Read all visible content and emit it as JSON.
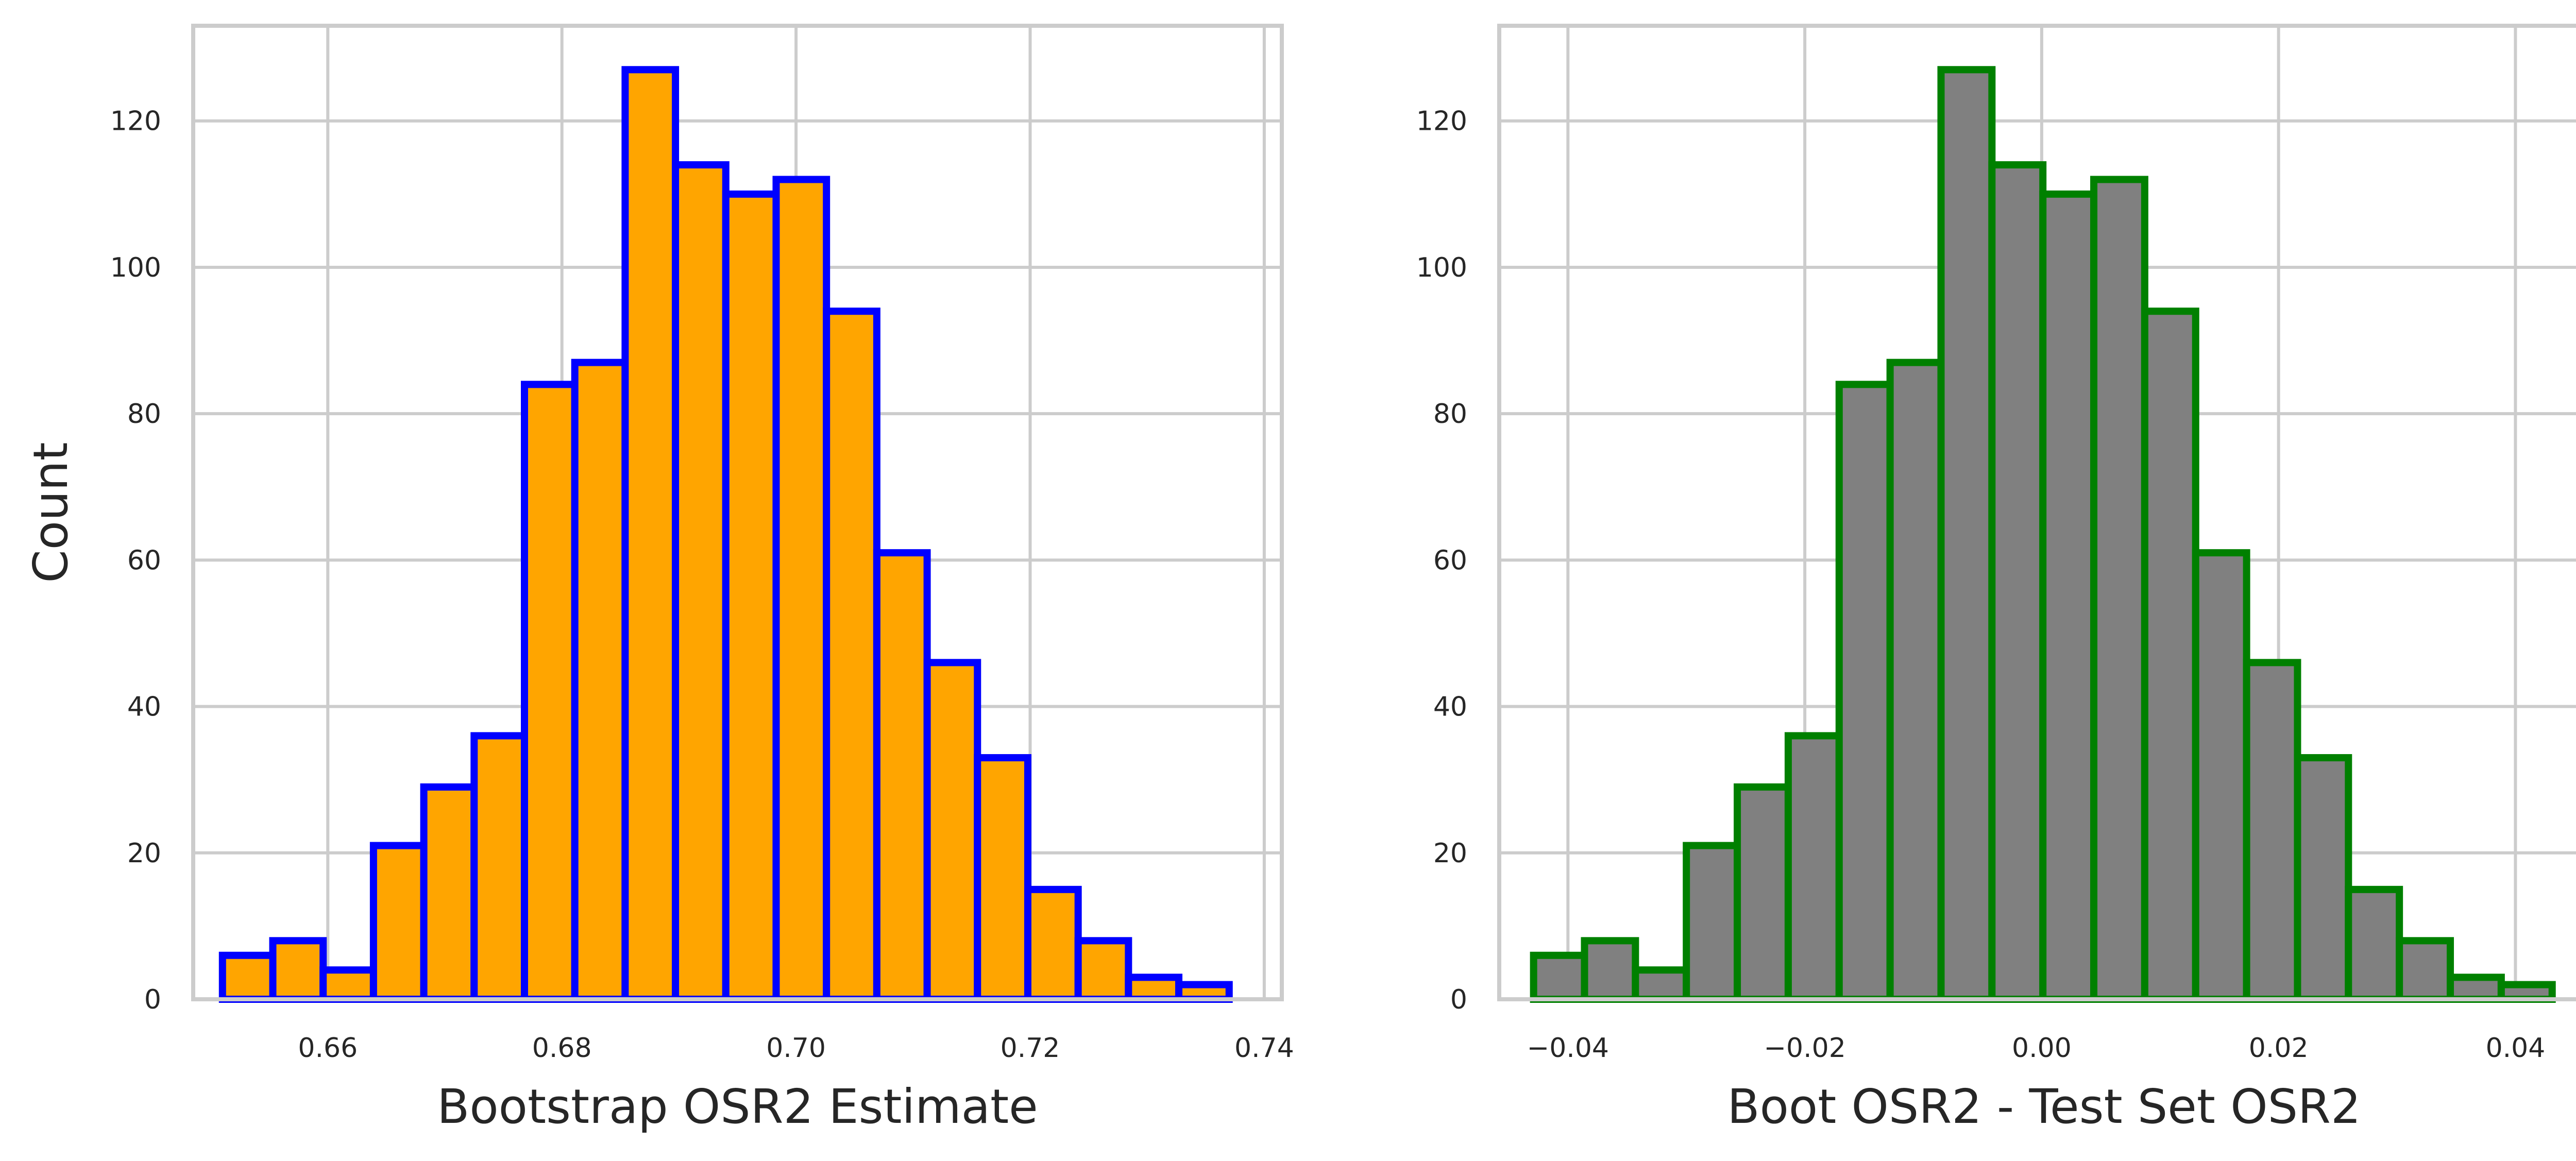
{
  "chart_data": [
    {
      "type": "bar",
      "xlabel": "Bootstrap OSR2 Estimate",
      "ylabel": "Count",
      "xlim": [
        0.6485,
        0.7415
      ],
      "ylim": [
        0,
        133
      ],
      "xticks": [
        0.66,
        0.68,
        0.7,
        0.72,
        0.74
      ],
      "xtick_labels": [
        "0.66",
        "0.68",
        "0.70",
        "0.72",
        "0.74"
      ],
      "yticks": [
        0,
        20,
        40,
        60,
        80,
        100,
        120
      ],
      "ytick_labels": [
        "0",
        "20",
        "40",
        "60",
        "80",
        "100",
        "120"
      ],
      "bin_edges": [
        0.651,
        0.6553,
        0.6596,
        0.6639,
        0.6682,
        0.6725,
        0.6768,
        0.6811,
        0.6854,
        0.6897,
        0.694,
        0.6983,
        0.7026,
        0.7069,
        0.7112,
        0.7155,
        0.7198,
        0.7241,
        0.7284,
        0.7327,
        0.737
      ],
      "values": [
        6,
        8,
        4,
        21,
        29,
        36,
        84,
        87,
        127,
        114,
        110,
        112,
        94,
        61,
        46,
        33,
        15,
        8,
        3,
        2
      ],
      "bar_color": "#ffa500",
      "edge_color": "#0000ff",
      "grid": true
    },
    {
      "type": "bar",
      "xlabel": "Boot OSR2 - Test Set OSR2",
      "ylabel": "",
      "xlim": [
        -0.0458,
        0.0462
      ],
      "ylim": [
        0,
        133
      ],
      "xticks": [
        -0.04,
        -0.02,
        0.0,
        0.02,
        0.04
      ],
      "xtick_labels": [
        "−0.04",
        "−0.02",
        "0.00",
        "0.02",
        "0.04"
      ],
      "yticks": [
        0,
        20,
        40,
        60,
        80,
        100,
        120
      ],
      "ytick_labels": [
        "0",
        "20",
        "40",
        "60",
        "80",
        "100",
        "120"
      ],
      "bin_edges": [
        -0.0429,
        -0.0386,
        -0.0343,
        -0.03,
        -0.0257,
        -0.0214,
        -0.0171,
        -0.0128,
        -0.0085,
        -0.0042,
        0.0001,
        0.0044,
        0.0087,
        0.013,
        0.0173,
        0.0216,
        0.0259,
        0.0302,
        0.0345,
        0.0388,
        0.0431
      ],
      "values": [
        6,
        8,
        4,
        21,
        29,
        36,
        84,
        87,
        127,
        114,
        110,
        112,
        94,
        61,
        46,
        33,
        15,
        8,
        3,
        2
      ],
      "bar_color": "#808080",
      "edge_color": "#008000",
      "grid": true
    }
  ]
}
